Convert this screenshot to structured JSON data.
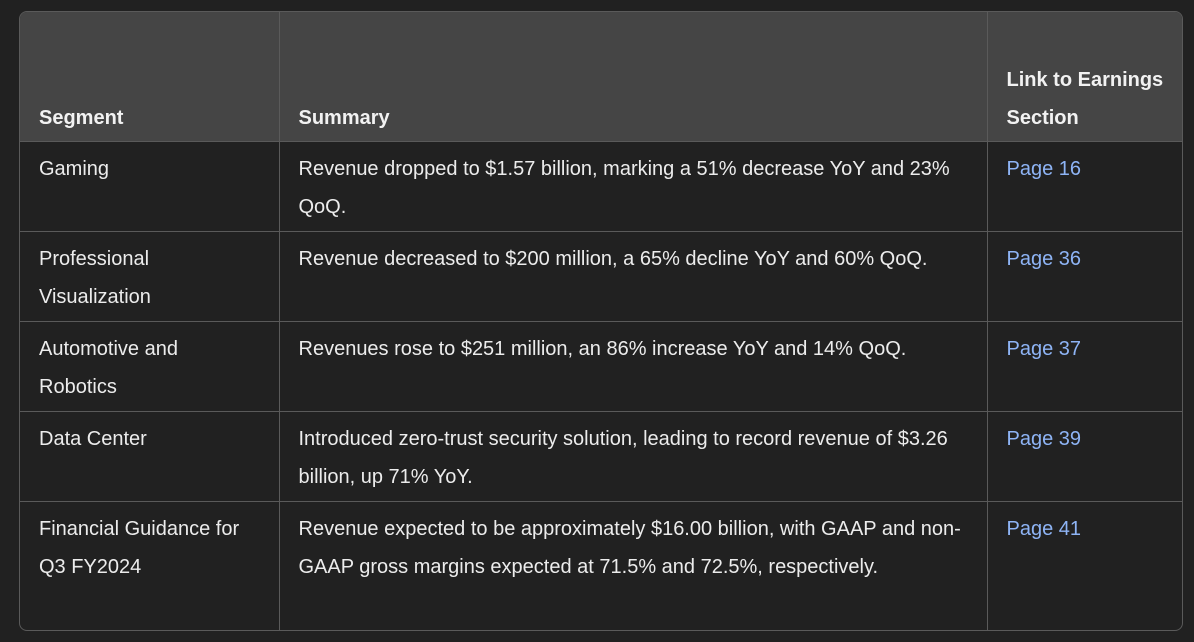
{
  "table": {
    "headers": [
      "Segment",
      "Summary",
      "Link to Earnings Section"
    ],
    "rows": [
      {
        "segment": "Gaming",
        "summary": "Revenue dropped to $1.57 billion, marking a 51% decrease YoY and 23% QoQ.",
        "link": "Page 16"
      },
      {
        "segment": "Professional Visualization",
        "summary": "Revenue decreased to $200 million, a 65% decline YoY and 60% QoQ.",
        "link": "Page 36"
      },
      {
        "segment": "Automotive and Robotics",
        "summary": "Revenues rose to $251 million, an 86% increase YoY and 14% QoQ.",
        "link": "Page 37"
      },
      {
        "segment": "Data Center",
        "summary": "Introduced zero-trust security solution, leading to record revenue of $3.26 billion, up 71% YoY.",
        "link": "Page 39"
      },
      {
        "segment": "Financial Guidance for Q3 FY2024",
        "summary": "Revenue expected to be approximately $16.00 billion, with GAAP and non-GAAP gross margins expected at 71.5% and 72.5%, respectively.",
        "link": "Page 41"
      }
    ]
  },
  "colors": {
    "background": "#212121",
    "header_background": "#454545",
    "border": "#5a5a5a",
    "text": "#ececec",
    "link": "#8eb4f5"
  }
}
